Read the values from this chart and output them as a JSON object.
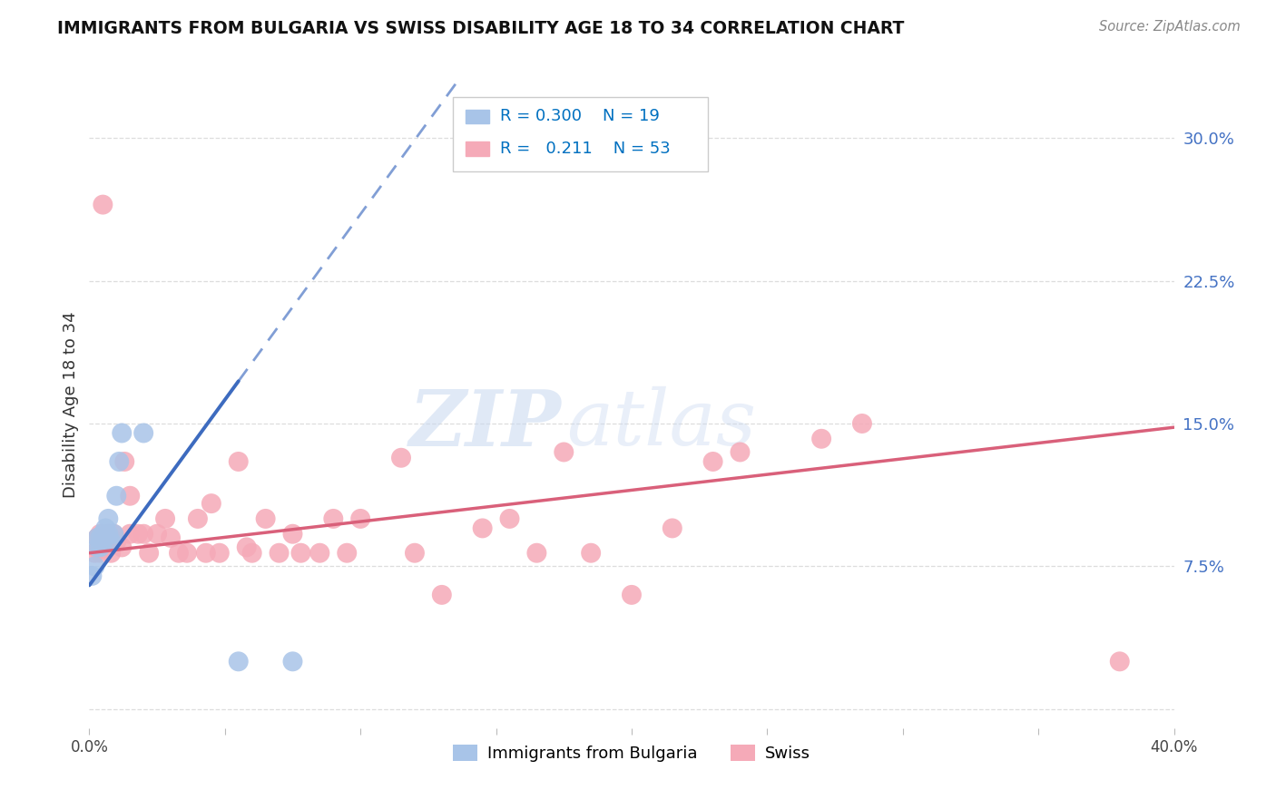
{
  "title": "IMMIGRANTS FROM BULGARIA VS SWISS DISABILITY AGE 18 TO 34 CORRELATION CHART",
  "source": "Source: ZipAtlas.com",
  "ylabel": "Disability Age 18 to 34",
  "xlim": [
    0.0,
    0.4
  ],
  "ylim": [
    -0.01,
    0.33
  ],
  "x_ticks": [
    0.0,
    0.05,
    0.1,
    0.15,
    0.2,
    0.25,
    0.3,
    0.35,
    0.4
  ],
  "x_tick_labels": [
    "0.0%",
    "",
    "",
    "",
    "",
    "",
    "",
    "",
    "40.0%"
  ],
  "y_ticks": [
    0.0,
    0.075,
    0.15,
    0.225,
    0.3
  ],
  "y_tick_labels": [
    "",
    "7.5%",
    "15.0%",
    "22.5%",
    "30.0%"
  ],
  "legend_r_bulgaria": "0.300",
  "legend_n_bulgaria": "19",
  "legend_r_swiss": "0.211",
  "legend_n_swiss": "53",
  "legend_label_bulgaria": "Immigrants from Bulgaria",
  "legend_label_swiss": "Swiss",
  "bulgaria_color": "#a8c4e8",
  "swiss_color": "#f5aab8",
  "bulgaria_line_color": "#3d6bbf",
  "swiss_line_color": "#d9607a",
  "watermark_zip": "ZIP",
  "watermark_atlas": "atlas",
  "background_color": "#ffffff",
  "grid_color": "#dddddd",
  "figsize": [
    14.06,
    8.92
  ],
  "dpi": 100,
  "bulgaria_x": [
    0.001,
    0.002,
    0.003,
    0.003,
    0.004,
    0.004,
    0.005,
    0.005,
    0.006,
    0.007,
    0.007,
    0.008,
    0.009,
    0.01,
    0.011,
    0.012,
    0.02,
    0.055,
    0.075
  ],
  "bulgaria_y": [
    0.07,
    0.075,
    0.085,
    0.09,
    0.085,
    0.09,
    0.088,
    0.092,
    0.095,
    0.092,
    0.1,
    0.088,
    0.092,
    0.112,
    0.13,
    0.145,
    0.145,
    0.025,
    0.025
  ],
  "swiss_x": [
    0.002,
    0.003,
    0.004,
    0.004,
    0.005,
    0.005,
    0.006,
    0.007,
    0.008,
    0.009,
    0.01,
    0.012,
    0.013,
    0.015,
    0.015,
    0.018,
    0.02,
    0.022,
    0.025,
    0.028,
    0.03,
    0.033,
    0.036,
    0.04,
    0.043,
    0.045,
    0.048,
    0.055,
    0.058,
    0.06,
    0.065,
    0.07,
    0.075,
    0.078,
    0.085,
    0.09,
    0.095,
    0.1,
    0.115,
    0.12,
    0.13,
    0.145,
    0.155,
    0.165,
    0.175,
    0.185,
    0.2,
    0.215,
    0.23,
    0.24,
    0.27,
    0.285,
    0.38
  ],
  "swiss_y": [
    0.082,
    0.09,
    0.082,
    0.092,
    0.085,
    0.265,
    0.09,
    0.092,
    0.082,
    0.092,
    0.088,
    0.085,
    0.13,
    0.092,
    0.112,
    0.092,
    0.092,
    0.082,
    0.092,
    0.1,
    0.09,
    0.082,
    0.082,
    0.1,
    0.082,
    0.108,
    0.082,
    0.13,
    0.085,
    0.082,
    0.1,
    0.082,
    0.092,
    0.082,
    0.082,
    0.1,
    0.082,
    0.1,
    0.132,
    0.082,
    0.06,
    0.095,
    0.1,
    0.082,
    0.135,
    0.082,
    0.06,
    0.095,
    0.13,
    0.135,
    0.142,
    0.15,
    0.025
  ],
  "regression_b_slope": 1.95,
  "regression_b_intercept": 0.065,
  "regression_s_slope": 0.165,
  "regression_s_intercept": 0.082
}
